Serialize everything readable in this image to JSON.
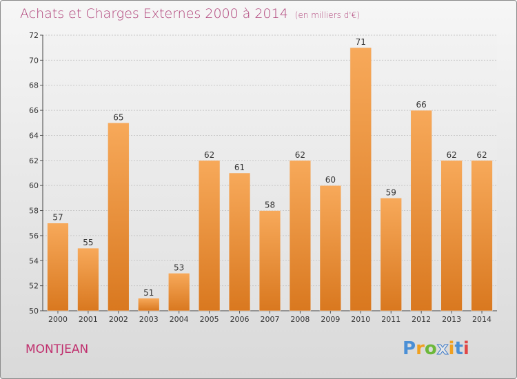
{
  "header": {
    "title": "Achats et Charges Externes 2000 à 2014",
    "unit": "(en milliers d'€)"
  },
  "footer": {
    "commune": "MONTJEAN",
    "logo_letters": [
      "P",
      "r",
      "o",
      "x",
      "i",
      "t",
      "i"
    ]
  },
  "colors": {
    "bar_top": "#f7a95a",
    "bar_bottom": "#d9781f",
    "title": "#b0437a",
    "commune": "#c0306e"
  },
  "chart_data": {
    "type": "bar",
    "title": "Achats et Charges Externes 2000 à 2014",
    "subtitle": "(en milliers d'€)",
    "categories": [
      "2000",
      "2001",
      "2002",
      "2003",
      "2004",
      "2005",
      "2006",
      "2007",
      "2008",
      "2009",
      "2010",
      "2011",
      "2012",
      "2013",
      "2014"
    ],
    "values": [
      57,
      55,
      65,
      51,
      53,
      62,
      61,
      58,
      62,
      60,
      71,
      59,
      66,
      62,
      62
    ],
    "ylim": [
      50,
      72
    ],
    "yticks": [
      "50",
      "52",
      "54",
      "56",
      "58",
      "60",
      "62",
      "64",
      "66",
      "68",
      "70",
      "72"
    ],
    "grid": true,
    "xlabel": "",
    "ylabel": ""
  }
}
